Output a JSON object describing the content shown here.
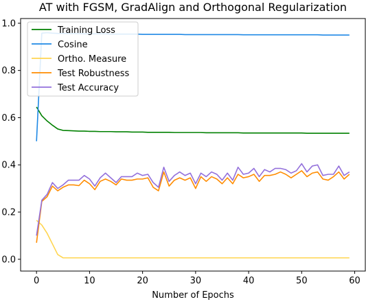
{
  "chart_data": {
    "type": "line",
    "title": "AT with FGSM, GradAlign and Orthogonal Regularization",
    "xlabel": "Number of Epochs",
    "ylabel": "",
    "xlim": [
      -3.0,
      62.0
    ],
    "ylim": [
      -0.05,
      1.02
    ],
    "xticks": [
      0,
      10,
      20,
      30,
      40,
      50,
      60
    ],
    "xtick_labels": [
      "0",
      "10",
      "20",
      "30",
      "40",
      "50",
      "60"
    ],
    "yticks": [
      0.0,
      0.2,
      0.4,
      0.6,
      0.8,
      1.0
    ],
    "ytick_labels": [
      "0.0",
      "0.2",
      "0.4",
      "0.6",
      "0.8",
      "1.0"
    ],
    "grid": false,
    "legend_position": "top-left",
    "x": [
      0,
      1,
      2,
      3,
      4,
      5,
      6,
      7,
      8,
      9,
      10,
      11,
      12,
      13,
      14,
      15,
      16,
      17,
      18,
      19,
      20,
      21,
      22,
      23,
      24,
      25,
      26,
      27,
      28,
      29,
      30,
      31,
      32,
      33,
      34,
      35,
      36,
      37,
      38,
      39,
      40,
      41,
      42,
      43,
      44,
      45,
      46,
      47,
      48,
      49,
      50,
      51,
      52,
      53,
      54,
      55,
      56,
      57,
      58,
      59
    ],
    "series": [
      {
        "name": "Training Loss",
        "color": "#008000",
        "values": [
          0.645,
          0.608,
          0.586,
          0.568,
          0.552,
          0.546,
          0.545,
          0.544,
          0.543,
          0.543,
          0.542,
          0.542,
          0.541,
          0.541,
          0.541,
          0.54,
          0.54,
          0.54,
          0.539,
          0.539,
          0.539,
          0.538,
          0.538,
          0.538,
          0.538,
          0.538,
          0.537,
          0.537,
          0.537,
          0.537,
          0.537,
          0.537,
          0.536,
          0.536,
          0.536,
          0.536,
          0.536,
          0.536,
          0.536,
          0.535,
          0.535,
          0.535,
          0.535,
          0.535,
          0.535,
          0.535,
          0.535,
          0.535,
          0.535,
          0.535,
          0.535,
          0.534,
          0.534,
          0.534,
          0.534,
          0.534,
          0.534,
          0.534,
          0.534,
          0.534
        ]
      },
      {
        "name": "Cosine",
        "color": "#1e88e5",
        "values": [
          0.5,
          0.958,
          0.96,
          0.958,
          0.957,
          0.957,
          0.956,
          0.956,
          0.956,
          0.955,
          0.955,
          0.955,
          0.955,
          0.955,
          0.954,
          0.954,
          0.954,
          0.954,
          0.954,
          0.954,
          0.953,
          0.953,
          0.953,
          0.953,
          0.953,
          0.953,
          0.953,
          0.953,
          0.952,
          0.952,
          0.952,
          0.952,
          0.952,
          0.952,
          0.952,
          0.952,
          0.952,
          0.952,
          0.952,
          0.951,
          0.951,
          0.951,
          0.951,
          0.951,
          0.951,
          0.951,
          0.951,
          0.951,
          0.951,
          0.951,
          0.951,
          0.951,
          0.951,
          0.951,
          0.95,
          0.95,
          0.95,
          0.95,
          0.95,
          0.95
        ]
      },
      {
        "name": "Ortho. Measure",
        "color": "#ffd54f",
        "values": [
          0.165,
          0.145,
          0.11,
          0.065,
          0.02,
          0.006,
          0.006,
          0.006,
          0.006,
          0.006,
          0.006,
          0.006,
          0.006,
          0.006,
          0.006,
          0.006,
          0.006,
          0.006,
          0.006,
          0.006,
          0.006,
          0.006,
          0.006,
          0.006,
          0.006,
          0.006,
          0.006,
          0.006,
          0.006,
          0.006,
          0.006,
          0.006,
          0.006,
          0.006,
          0.006,
          0.006,
          0.006,
          0.006,
          0.006,
          0.006,
          0.006,
          0.006,
          0.006,
          0.006,
          0.006,
          0.006,
          0.006,
          0.006,
          0.006,
          0.006,
          0.006,
          0.006,
          0.006,
          0.006,
          0.006,
          0.006,
          0.006,
          0.006,
          0.006,
          0.006
        ]
      },
      {
        "name": "Test Robustness",
        "color": "#ff8c00",
        "values": [
          0.07,
          0.245,
          0.265,
          0.31,
          0.29,
          0.305,
          0.315,
          0.315,
          0.312,
          0.335,
          0.32,
          0.295,
          0.33,
          0.34,
          0.33,
          0.315,
          0.34,
          0.335,
          0.335,
          0.34,
          0.34,
          0.345,
          0.305,
          0.29,
          0.37,
          0.31,
          0.335,
          0.345,
          0.335,
          0.345,
          0.3,
          0.35,
          0.33,
          0.35,
          0.34,
          0.32,
          0.345,
          0.32,
          0.36,
          0.345,
          0.35,
          0.36,
          0.33,
          0.355,
          0.355,
          0.36,
          0.37,
          0.36,
          0.345,
          0.36,
          0.375,
          0.35,
          0.365,
          0.37,
          0.34,
          0.335,
          0.35,
          0.37,
          0.34,
          0.36
        ]
      },
      {
        "name": "Test Accuracy",
        "color": "#9370db",
        "values": [
          0.1,
          0.25,
          0.275,
          0.325,
          0.3,
          0.315,
          0.335,
          0.335,
          0.335,
          0.355,
          0.34,
          0.31,
          0.345,
          0.365,
          0.345,
          0.325,
          0.35,
          0.35,
          0.35,
          0.365,
          0.355,
          0.36,
          0.325,
          0.305,
          0.39,
          0.33,
          0.355,
          0.37,
          0.355,
          0.365,
          0.32,
          0.365,
          0.35,
          0.37,
          0.36,
          0.335,
          0.365,
          0.335,
          0.39,
          0.36,
          0.365,
          0.385,
          0.35,
          0.38,
          0.37,
          0.385,
          0.385,
          0.38,
          0.365,
          0.375,
          0.405,
          0.37,
          0.395,
          0.4,
          0.355,
          0.36,
          0.36,
          0.395,
          0.355,
          0.37
        ]
      }
    ]
  }
}
